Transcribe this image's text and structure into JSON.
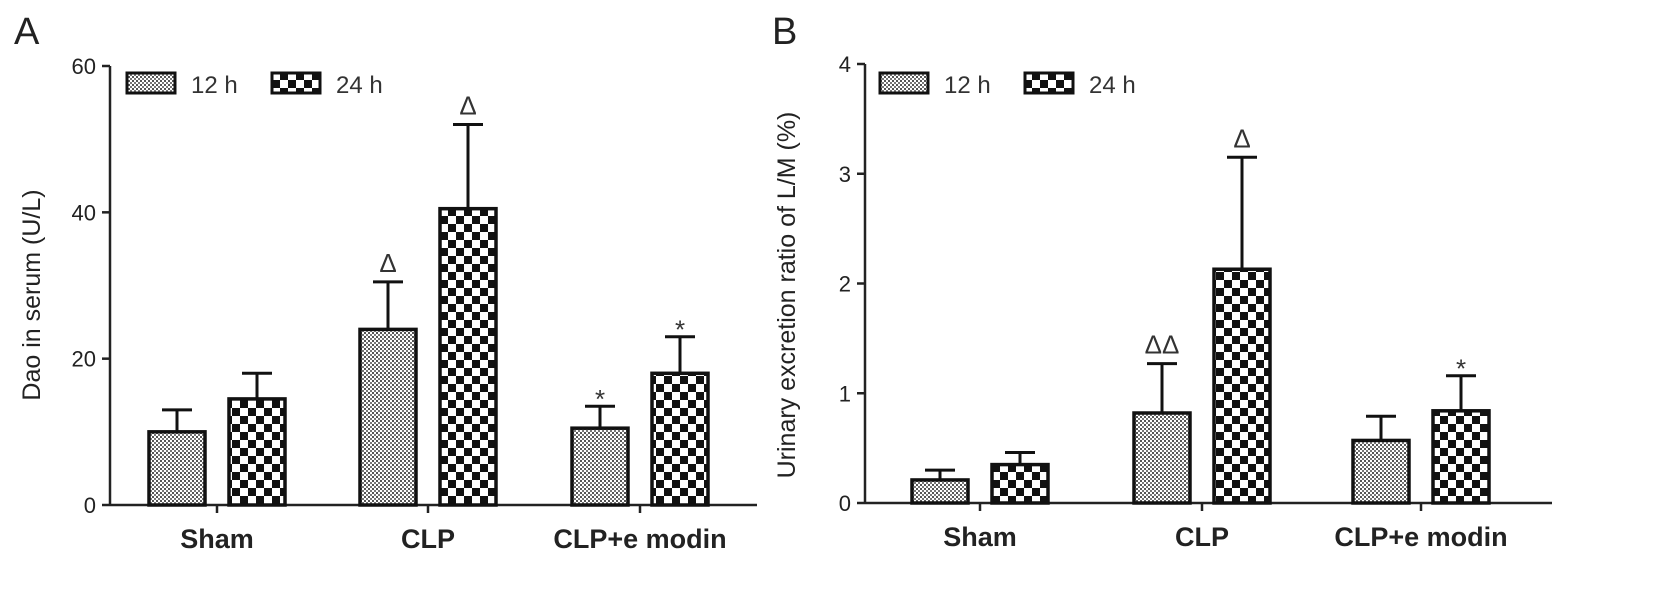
{
  "chart_data": [
    {
      "type": "bar",
      "panel": "A",
      "categories": [
        "Sham",
        "CLP",
        "CLP+e modin"
      ],
      "ylabel": "Dao in serum (U/L)",
      "xlabel": "",
      "ylim": [
        0,
        60
      ],
      "yticks": [
        "0",
        "20",
        "40",
        "60"
      ],
      "legend_position": "top-left",
      "series": [
        {
          "name": "12 h",
          "pattern": "fine-dots",
          "values": [
            10,
            24,
            10.5
          ],
          "errors": [
            3,
            6.5,
            3
          ]
        },
        {
          "name": "24 h",
          "pattern": "checkerboard",
          "values": [
            14.5,
            40.5,
            18
          ],
          "errors": [
            3.5,
            11.5,
            5
          ]
        }
      ],
      "annotations": [
        {
          "category": 1,
          "series": 0,
          "text": "Δ"
        },
        {
          "category": 1,
          "series": 1,
          "text": "Δ"
        },
        {
          "category": 2,
          "series": 0,
          "text": "*"
        },
        {
          "category": 2,
          "series": 1,
          "text": "*"
        }
      ]
    },
    {
      "type": "bar",
      "panel": "B",
      "categories": [
        "Sham",
        "CLP",
        "CLP+e modin"
      ],
      "ylabel": "Urinary excretion ratio of L/M (%)",
      "xlabel": "",
      "ylim": [
        0,
        4
      ],
      "yticks": [
        "0",
        "1",
        "2",
        "3",
        "4"
      ],
      "legend_position": "top-left",
      "series": [
        {
          "name": "12 h",
          "pattern": "fine-dots",
          "values": [
            0.21,
            0.82,
            0.57
          ],
          "errors": [
            0.09,
            0.45,
            0.22
          ]
        },
        {
          "name": "24 h",
          "pattern": "checkerboard",
          "values": [
            0.35,
            2.13,
            0.84
          ],
          "errors": [
            0.11,
            1.02,
            0.32
          ]
        }
      ],
      "annotations": [
        {
          "category": 1,
          "series": 0,
          "text": "ΔΔ"
        },
        {
          "category": 1,
          "series": 1,
          "text": "Δ"
        },
        {
          "category": 2,
          "series": 1,
          "text": "*"
        }
      ]
    }
  ]
}
